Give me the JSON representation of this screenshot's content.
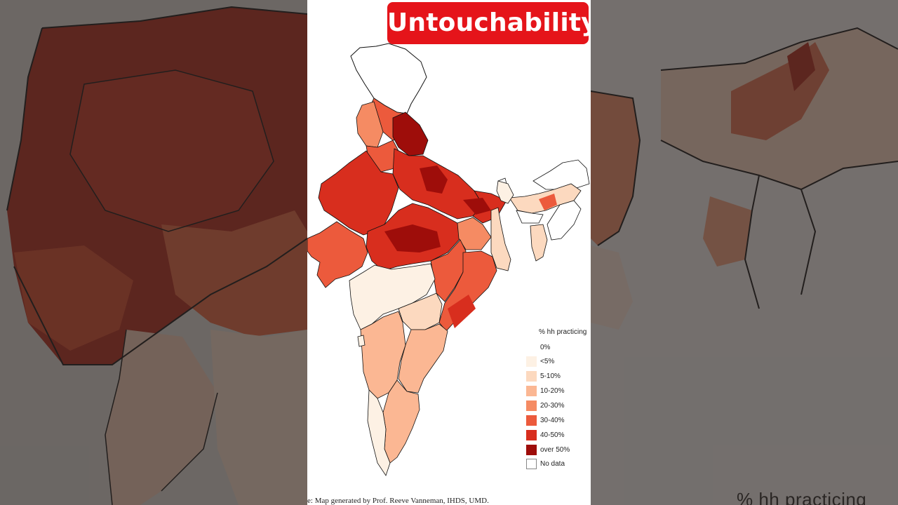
{
  "title": "Untouchability",
  "legend": {
    "title": "% hh practicing",
    "items": [
      {
        "label": "0%",
        "color": "#ffffff"
      },
      {
        "label": "<5%",
        "color": "#fdf1e4"
      },
      {
        "label": "5-10%",
        "color": "#fcd9bf"
      },
      {
        "label": "10-20%",
        "color": "#fbb793"
      },
      {
        "label": "20-30%",
        "color": "#f58b63"
      },
      {
        "label": "30-40%",
        "color": "#ec5a3c"
      },
      {
        "label": "40-50%",
        "color": "#d82e1e"
      },
      {
        "label": "over 50%",
        "color": "#9e0d0a"
      },
      {
        "label": "No data",
        "color": "#ffffff"
      }
    ]
  },
  "source": "e: Map generated by Prof. Reeve Vanneman, IHDS, UMD.",
  "background_caption": "% hh practicing",
  "colors": {
    "badge": "#e5141a",
    "badge_text": "#ffffff",
    "background": "#3b3836"
  }
}
